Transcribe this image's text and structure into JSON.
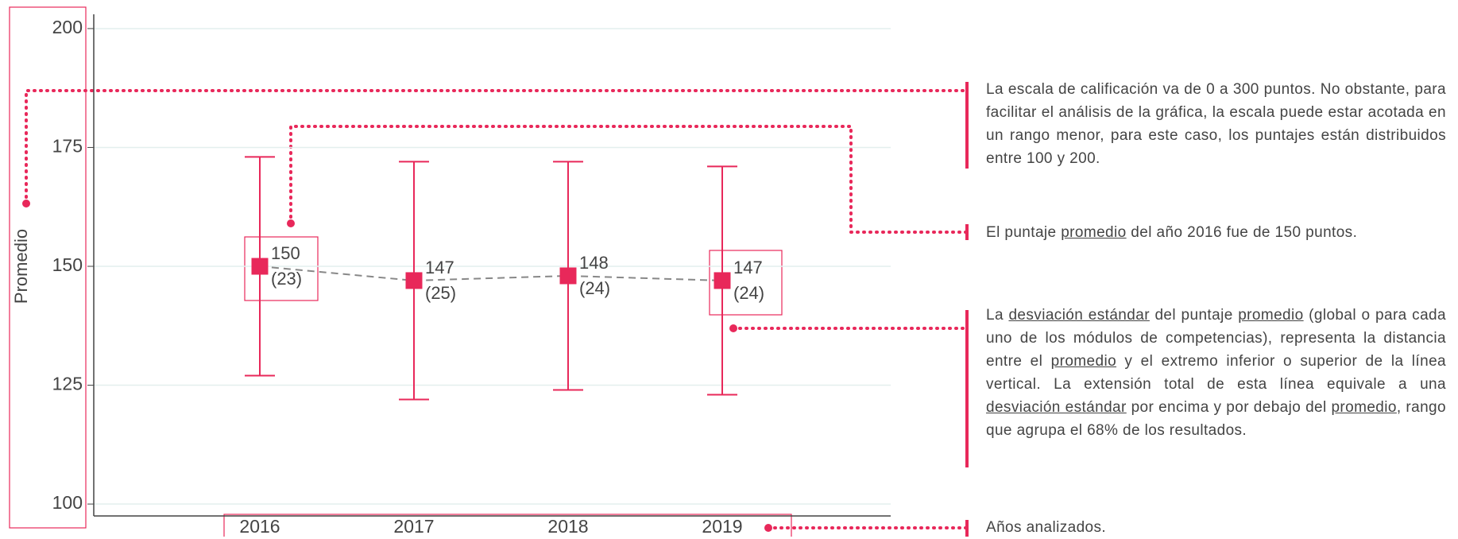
{
  "chart_data": {
    "type": "errorbar",
    "y_label": "Promedio",
    "categories": [
      "2016",
      "2017",
      "2018",
      "2019"
    ],
    "values": [
      150,
      147,
      148,
      147
    ],
    "errors": [
      23,
      25,
      24,
      24
    ],
    "error_labels": [
      "(23)",
      "(25)",
      "(24)",
      "(24)"
    ],
    "color": "#e8285a",
    "line_color": "#888888",
    "ylim": [
      97.5,
      203
    ],
    "yticks": [
      100,
      125,
      150,
      175,
      200
    ],
    "grid": true
  },
  "annotations": [
    {
      "parts": [
        "La escala de calificación va de 0 a 300 puntos. No obstante, para facilitar el análisis de la gráfica, la escala puede estar acotada en un rango menor, para este caso, los puntajes están distribuidos entre 100 y 200."
      ]
    },
    {
      "parts": [
        "El puntaje ",
        {
          "text": "promedio",
          "underline": true
        },
        " del año 2016 fue de 150 puntos."
      ]
    },
    {
      "parts": [
        "La ",
        {
          "text": "desviación estándar",
          "underline": true
        },
        " del puntaje ",
        {
          "text": "promedio",
          "underline": true
        },
        " (global o para cada uno de los módulos de competencias), representa la distancia entre el ",
        {
          "text": "promedio",
          "underline": true
        },
        " y el extremo inferior o superior de la línea vertical. La extensión total de esta línea equivale a una ",
        {
          "text": "desviación estándar",
          "underline": true
        },
        " por encima y por debajo del ",
        {
          "text": "promedio",
          "underline": true
        },
        ", rango que agrupa el 68% de los resultados."
      ]
    },
    {
      "parts": [
        "Años analizados."
      ]
    }
  ]
}
